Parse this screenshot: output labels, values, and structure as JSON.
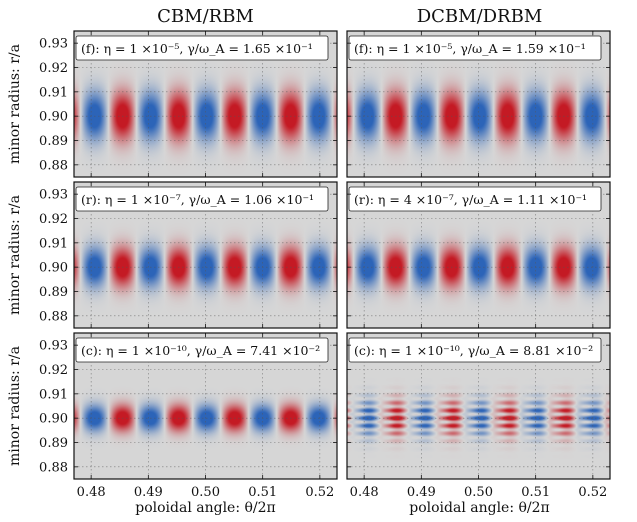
{
  "chart_data": {
    "type": "heatmap",
    "columns": [
      "CBM/RBM",
      "DCBM/DRBM"
    ],
    "xlabel": "poloidal angle: θ/2π",
    "ylabel": "minor radius: r/a",
    "xlim": [
      0.477,
      0.523
    ],
    "ylim": [
      0.875,
      0.935
    ],
    "xticks": [
      "0.48",
      "0.49",
      "0.50",
      "0.51",
      "0.52"
    ],
    "xtick_values": [
      0.48,
      0.49,
      0.5,
      0.51,
      0.52
    ],
    "yticks": [
      "0.88",
      "0.89",
      "0.90",
      "0.91",
      "0.92",
      "0.93"
    ],
    "ytick_values": [
      0.88,
      0.89,
      0.9,
      0.91,
      0.92,
      0.93
    ],
    "grid": true,
    "colormap": {
      "negative": "#2c64b8",
      "zero": "#d6d6d6",
      "positive": "#c41a24"
    },
    "panels": [
      {
        "id": "f-left",
        "annotation": "(f): η = 1 ×10⁻⁵, γ/ω_A = 1.65 ×10⁻¹",
        "eta": "1e-5",
        "growth_rate": 0.165,
        "radial_center": 0.9,
        "radial_width": 0.022,
        "wavelength": 0.0098,
        "phase_peak": 0.4855,
        "oscillatory": false
      },
      {
        "id": "f-right",
        "annotation": "(f): η = 1 ×10⁻⁵, γ/ω_A = 1.59 ×10⁻¹",
        "eta": "1e-5",
        "growth_rate": 0.159,
        "radial_center": 0.9,
        "radial_width": 0.022,
        "wavelength": 0.0098,
        "phase_peak": 0.4855,
        "oscillatory": false
      },
      {
        "id": "r-left",
        "annotation": "(r): η = 1 ×10⁻⁷, γ/ω_A = 1.06 ×10⁻¹",
        "eta": "1e-7",
        "growth_rate": 0.106,
        "radial_center": 0.9,
        "radial_width": 0.018,
        "wavelength": 0.0098,
        "phase_peak": 0.4855,
        "oscillatory": false
      },
      {
        "id": "r-right",
        "annotation": "(r): η = 4 ×10⁻⁷, γ/ω_A = 1.11 ×10⁻¹",
        "eta": "4e-7",
        "growth_rate": 0.111,
        "radial_center": 0.9,
        "radial_width": 0.018,
        "wavelength": 0.0098,
        "phase_peak": 0.4855,
        "oscillatory": false
      },
      {
        "id": "c-left",
        "annotation": "(c): η = 1 ×10⁻¹⁰, γ/ω_A = 7.41 ×10⁻²",
        "eta": "1e-10",
        "growth_rate": 0.0741,
        "radial_center": 0.9,
        "radial_width": 0.012,
        "wavelength": 0.0098,
        "phase_peak": 0.4855,
        "oscillatory": false
      },
      {
        "id": "c-right",
        "annotation": "(c): η = 1 ×10⁻¹⁰, γ/ω_A = 8.81 ×10⁻²",
        "eta": "1e-10",
        "growth_rate": 0.0881,
        "radial_center": 0.9,
        "radial_width": 0.016,
        "wavelength": 0.0098,
        "phase_peak": 0.4855,
        "oscillatory": true
      }
    ]
  }
}
